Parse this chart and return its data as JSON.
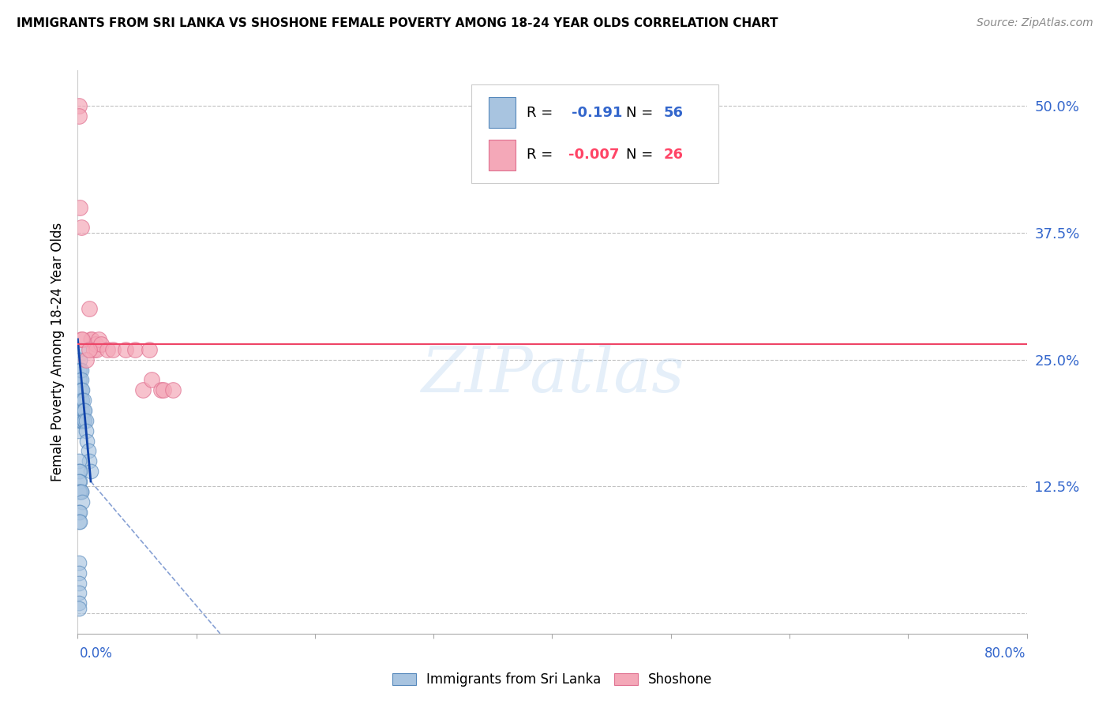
{
  "title": "IMMIGRANTS FROM SRI LANKA VS SHOSHONE FEMALE POVERTY AMONG 18-24 YEAR OLDS CORRELATION CHART",
  "source": "Source: ZipAtlas.com",
  "ylabel": "Female Poverty Among 18-24 Year Olds",
  "blue_color": "#A8C4E0",
  "pink_color": "#F4A8B8",
  "blue_edge": "#5588BB",
  "pink_edge": "#E07090",
  "trend_blue": "#1144AA",
  "trend_pink": "#EE4466",
  "watermark": "ZIPatlas",
  "sri_lanka_x": [
    0.001,
    0.001,
    0.001,
    0.001,
    0.001,
    0.001,
    0.001,
    0.001,
    0.002,
    0.002,
    0.002,
    0.002,
    0.002,
    0.002,
    0.002,
    0.003,
    0.003,
    0.003,
    0.003,
    0.003,
    0.003,
    0.004,
    0.004,
    0.004,
    0.004,
    0.005,
    0.005,
    0.005,
    0.006,
    0.006,
    0.007,
    0.007,
    0.008,
    0.009,
    0.01,
    0.011,
    0.001,
    0.001,
    0.002,
    0.002,
    0.003,
    0.001,
    0.001,
    0.002,
    0.003,
    0.004,
    0.001,
    0.002,
    0.001,
    0.002,
    0.001,
    0.001,
    0.001,
    0.001,
    0.001,
    0.001
  ],
  "sri_lanka_y": [
    0.26,
    0.24,
    0.23,
    0.22,
    0.21,
    0.2,
    0.19,
    0.18,
    0.25,
    0.24,
    0.23,
    0.22,
    0.21,
    0.2,
    0.19,
    0.24,
    0.23,
    0.22,
    0.21,
    0.2,
    0.19,
    0.22,
    0.21,
    0.2,
    0.19,
    0.21,
    0.2,
    0.19,
    0.2,
    0.19,
    0.19,
    0.18,
    0.17,
    0.16,
    0.15,
    0.14,
    0.15,
    0.14,
    0.14,
    0.13,
    0.12,
    0.13,
    0.12,
    0.12,
    0.12,
    0.11,
    0.1,
    0.1,
    0.09,
    0.09,
    0.05,
    0.04,
    0.03,
    0.02,
    0.01,
    0.005
  ],
  "shoshone_x": [
    0.001,
    0.001,
    0.003,
    0.01,
    0.011,
    0.012,
    0.014,
    0.015,
    0.016,
    0.018,
    0.02,
    0.025,
    0.03,
    0.04,
    0.048,
    0.055,
    0.06,
    0.062,
    0.002,
    0.003,
    0.004,
    0.007,
    0.01,
    0.07,
    0.072,
    0.08
  ],
  "shoshone_y": [
    0.5,
    0.49,
    0.38,
    0.3,
    0.27,
    0.27,
    0.26,
    0.265,
    0.26,
    0.27,
    0.265,
    0.26,
    0.26,
    0.26,
    0.26,
    0.22,
    0.26,
    0.23,
    0.4,
    0.27,
    0.27,
    0.25,
    0.26,
    0.22,
    0.22,
    0.22
  ],
  "trend_blue_x0": 0.0,
  "trend_blue_y0": 0.27,
  "trend_blue_x1": 0.011,
  "trend_blue_y1": 0.13,
  "trend_blue_dash_x0": 0.011,
  "trend_blue_dash_y0": 0.13,
  "trend_blue_dash_x1": 0.12,
  "trend_blue_dash_y1": -0.02,
  "trend_pink_y": 0.265,
  "xmin": 0.0,
  "xmax": 0.8,
  "ymin": -0.02,
  "ymax": 0.535
}
